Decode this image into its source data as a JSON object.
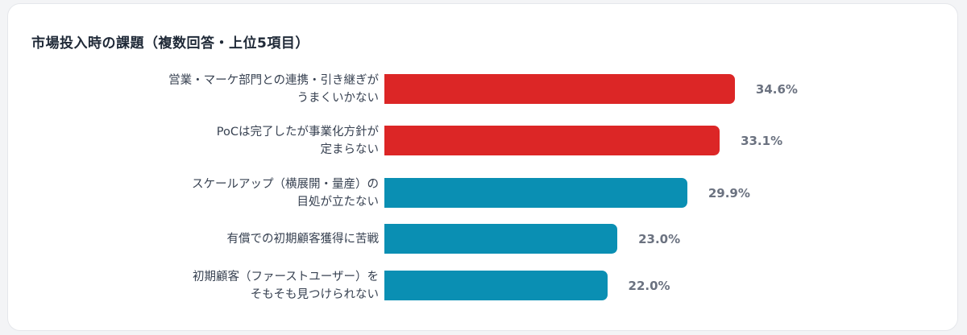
{
  "chart_data": {
    "type": "bar",
    "orientation": "horizontal",
    "title": "市場投入時の課題（複数回答・上位5項目）",
    "categories": [
      [
        "営業・マーケ部門との連携・引き継ぎが",
        "うまくいかない"
      ],
      [
        "PoCは完了したが事業化方針が",
        "定まらない"
      ],
      [
        "スケールアップ（横展開・量産）の",
        "目処が立たない"
      ],
      [
        "有償での初期顧客獲得に苦戦"
      ],
      [
        "初期顧客（ファーストユーザー）を",
        "そもそも見つけられない"
      ]
    ],
    "values": [
      34.6,
      33.1,
      29.9,
      23.0,
      22.0
    ],
    "value_labels": [
      "34.6%",
      "33.1%",
      "29.9%",
      "23.0%",
      "22.0%"
    ],
    "bar_colors": [
      "#dc2626",
      "#dc2626",
      "#0a8fb3",
      "#0a8fb3",
      "#0a8fb3"
    ],
    "xlim": [
      0,
      40
    ],
    "grid": false,
    "legend": "none"
  }
}
